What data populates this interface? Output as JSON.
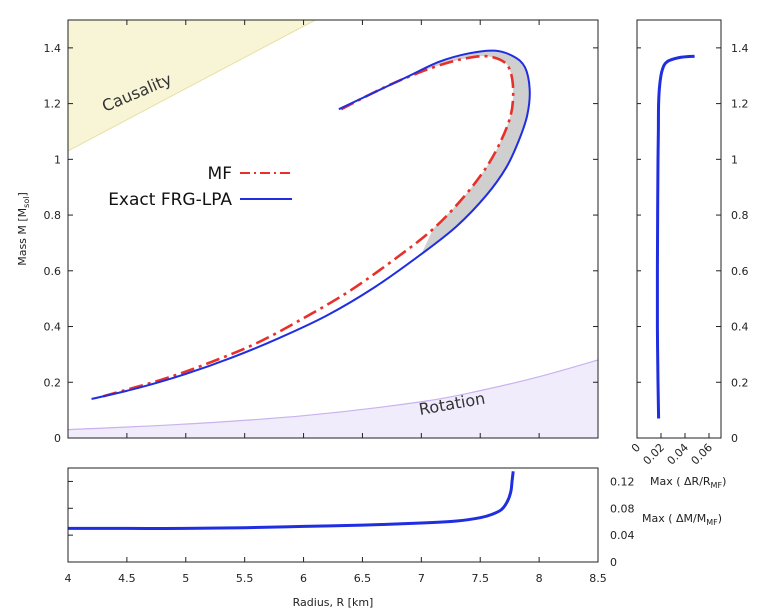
{
  "chart_data": [
    {
      "id": "main",
      "type": "line",
      "title": "",
      "xlabel": "",
      "ylabel": "Mass M [Msol]",
      "ylabel_main": "Mass M [M",
      "ylabel_sub": "sol",
      "ylabel_close": "]",
      "xlim": [
        4,
        8.5
      ],
      "ylim": [
        0,
        1.5
      ],
      "yticks": [
        "0",
        "0.2",
        "0.4",
        "0.6",
        "0.8",
        "1",
        "1.2",
        "1.4"
      ],
      "legend": {
        "position": "upper-left",
        "entries": [
          "MF",
          "Exact FRG-LPA"
        ]
      },
      "annotations": [
        "Causality",
        "Rotation"
      ],
      "series": [
        {
          "name": "MF",
          "color": "#e8302a",
          "style": "dash-dot",
          "x": [
            4.3,
            4.8,
            5.2,
            5.6,
            6.0,
            6.4,
            6.8,
            7.1,
            7.35,
            7.55,
            7.68,
            7.76,
            7.78,
            7.76,
            7.7,
            7.55,
            7.35,
            7.1,
            6.8,
            6.55,
            6.32
          ],
          "y": [
            0.15,
            0.21,
            0.27,
            0.34,
            0.43,
            0.53,
            0.65,
            0.75,
            0.86,
            0.97,
            1.07,
            1.16,
            1.24,
            1.31,
            1.35,
            1.37,
            1.36,
            1.33,
            1.28,
            1.23,
            1.18
          ]
        },
        {
          "name": "Exact FRG-LPA",
          "color": "#1f2ee0",
          "style": "solid",
          "x": [
            4.2,
            4.6,
            5.0,
            5.4,
            5.8,
            6.2,
            6.6,
            7.0,
            7.3,
            7.55,
            7.72,
            7.83,
            7.9,
            7.92,
            7.88,
            7.78,
            7.62,
            7.4,
            7.15,
            6.9,
            6.6,
            6.3
          ],
          "y": [
            0.14,
            0.18,
            0.23,
            0.29,
            0.36,
            0.44,
            0.54,
            0.66,
            0.76,
            0.87,
            0.97,
            1.07,
            1.16,
            1.25,
            1.33,
            1.37,
            1.39,
            1.38,
            1.35,
            1.3,
            1.24,
            1.18
          ]
        }
      ],
      "regions": [
        {
          "name": "Causality",
          "color": "#f7f5d6",
          "edge_color": "#e6e0a6",
          "boundary_x": [
            4.0,
            6.1
          ],
          "boundary_y": [
            1.03,
            1.5
          ]
        },
        {
          "name": "Rotation",
          "color": "#f1ecfb",
          "edge_color": "#c9b2ef",
          "boundary_x": [
            4.0,
            5.0,
            6.0,
            7.0,
            7.5,
            8.0,
            8.5
          ],
          "boundary_y": [
            0.03,
            0.05,
            0.08,
            0.13,
            0.17,
            0.22,
            0.28
          ]
        }
      ]
    },
    {
      "id": "right",
      "type": "line",
      "xlabel": "Max ( ΔR/RMF)",
      "xlabel_main": "Max ( ΔR/R",
      "xlabel_sub": "MF",
      "xlabel_close": ")",
      "xlim": [
        0,
        0.07
      ],
      "ylim": [
        0,
        1.5
      ],
      "xticks": [
        "0",
        "0.02",
        "0.04",
        "0.06"
      ],
      "yticks": [
        "0",
        "0.2",
        "0.4",
        "0.6",
        "0.8",
        "1",
        "1.2",
        "1.4"
      ],
      "series": [
        {
          "name": "Max dR/R",
          "color": "#1f2ee0",
          "x": [
            0.018,
            0.0175,
            0.017,
            0.017,
            0.0172,
            0.0175,
            0.0178,
            0.018,
            0.019,
            0.021,
            0.025,
            0.035,
            0.048
          ],
          "y": [
            0.07,
            0.2,
            0.4,
            0.6,
            0.8,
            1.0,
            1.1,
            1.2,
            1.27,
            1.32,
            1.35,
            1.365,
            1.37
          ]
        }
      ]
    },
    {
      "id": "bottom",
      "type": "line",
      "xlabel": "Radius, R [km]",
      "ylabel": "Max ( ΔM/MMF)",
      "ylabel_main": "Max ( ΔM/M",
      "ylabel_sub": "MF",
      "ylabel_close": ")",
      "xlim": [
        4,
        8.5
      ],
      "ylim": [
        0,
        0.14
      ],
      "xticks": [
        "4",
        "4.5",
        "5",
        "5.5",
        "6",
        "6.5",
        "7",
        "7.5",
        "8",
        "8.5"
      ],
      "yticks": [
        "0",
        "0.04",
        "0.08",
        "0.12"
      ],
      "series": [
        {
          "name": "Max dM/M",
          "color": "#1f2ee0",
          "x": [
            4.0,
            4.5,
            5.0,
            5.5,
            6.0,
            6.5,
            7.0,
            7.3,
            7.5,
            7.6,
            7.68,
            7.73,
            7.76,
            7.77,
            7.78
          ],
          "y": [
            0.05,
            0.05,
            0.05,
            0.051,
            0.053,
            0.055,
            0.058,
            0.061,
            0.066,
            0.071,
            0.078,
            0.09,
            0.105,
            0.12,
            0.135
          ]
        }
      ]
    }
  ]
}
